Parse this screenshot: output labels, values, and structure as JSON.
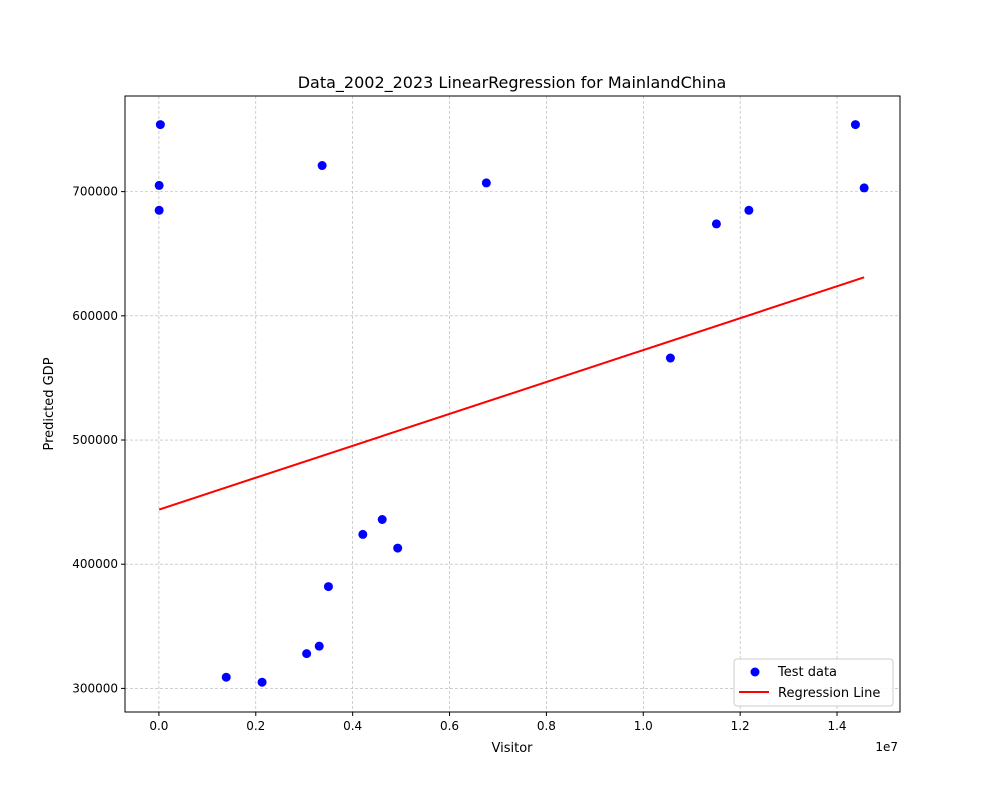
{
  "chart_data": {
    "type": "scatter",
    "title": "Data_2002_2023 LinearRegression for MainlandChina",
    "xlabel": "Visitor",
    "ylabel": "Predicted GDP",
    "x_offset_label": "1e7",
    "xlim": [
      -700000,
      15300000
    ],
    "ylim": [
      281000,
      777000
    ],
    "x_ticks": [
      0,
      2000000,
      4000000,
      6000000,
      8000000,
      10000000,
      12000000,
      14000000
    ],
    "x_tick_labels": [
      "0.0",
      "0.2",
      "0.4",
      "0.6",
      "0.8",
      "1.0",
      "1.2",
      "1.4"
    ],
    "y_ticks": [
      300000,
      400000,
      500000,
      600000,
      700000
    ],
    "y_tick_labels": [
      "300000",
      "400000",
      "500000",
      "600000",
      "700000"
    ],
    "grid": true,
    "legend_position": "lower-right",
    "series": [
      {
        "name": "Test data",
        "kind": "scatter",
        "color": "#0000ff",
        "points": [
          {
            "x": 30000,
            "y": 754000
          },
          {
            "x": 5000,
            "y": 705000
          },
          {
            "x": 5000,
            "y": 685000
          },
          {
            "x": 3370000,
            "y": 721000
          },
          {
            "x": 6760000,
            "y": 707000
          },
          {
            "x": 14380000,
            "y": 754000
          },
          {
            "x": 14560000,
            "y": 703000
          },
          {
            "x": 11510000,
            "y": 674000
          },
          {
            "x": 12180000,
            "y": 685000
          },
          {
            "x": 10560000,
            "y": 566000
          },
          {
            "x": 4610000,
            "y": 436000
          },
          {
            "x": 4210000,
            "y": 424000
          },
          {
            "x": 4930000,
            "y": 413000
          },
          {
            "x": 3500000,
            "y": 382000
          },
          {
            "x": 3310000,
            "y": 334000
          },
          {
            "x": 3050000,
            "y": 328000
          },
          {
            "x": 1390000,
            "y": 309000
          },
          {
            "x": 2130000,
            "y": 305000
          }
        ]
      },
      {
        "name": "Regression Line",
        "kind": "line",
        "color": "#ff0000",
        "points": [
          {
            "x": 5000,
            "y": 444000
          },
          {
            "x": 14560000,
            "y": 631000
          }
        ]
      }
    ]
  }
}
